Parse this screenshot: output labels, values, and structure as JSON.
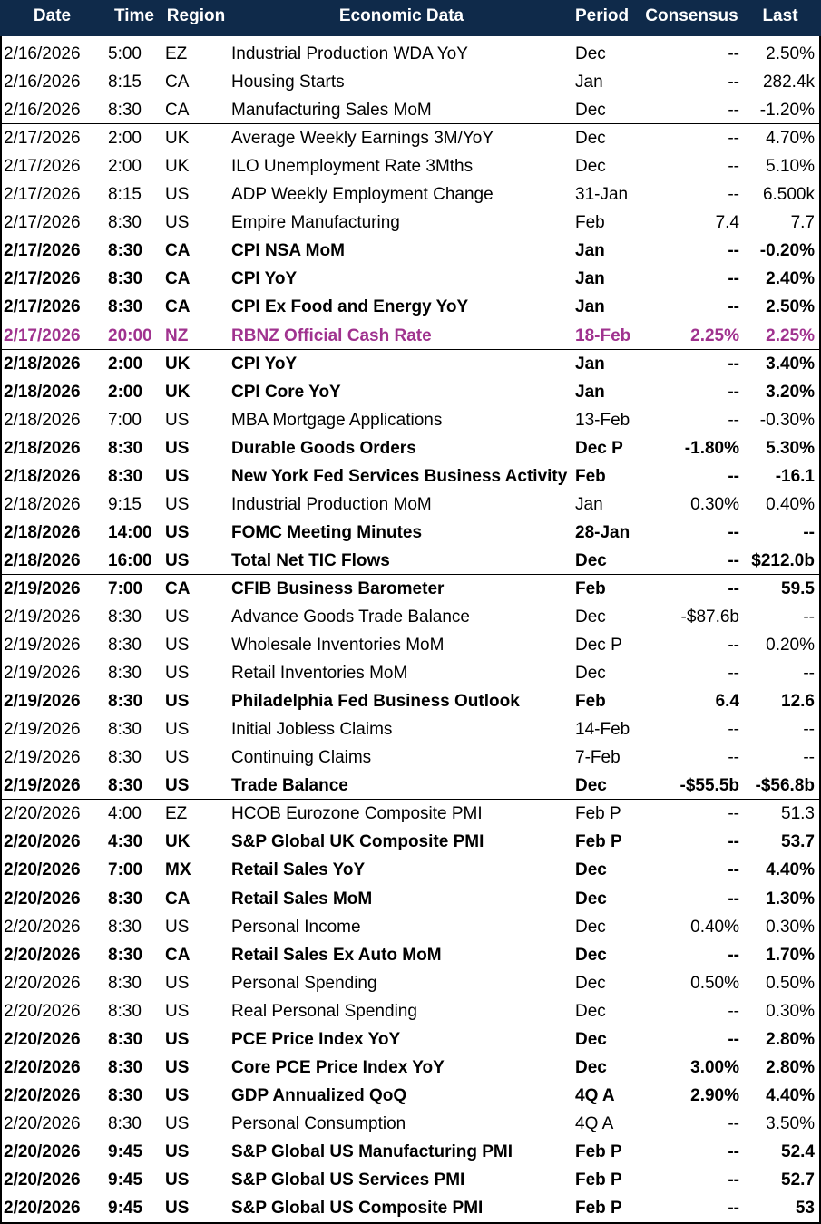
{
  "table": {
    "header": [
      "Date",
      "Time",
      "Region",
      "Economic Data",
      "Period",
      "Consensus",
      "Last"
    ],
    "rows": [
      {
        "cells": [
          "2/16/2026",
          "5:00",
          "EZ",
          "Industrial Production WDA YoY",
          "Dec",
          "--",
          "2.50%"
        ]
      },
      {
        "cells": [
          "2/16/2026",
          "8:15",
          "CA",
          "Housing Starts",
          "Jan",
          "--",
          "282.4k"
        ]
      },
      {
        "cells": [
          "2/16/2026",
          "8:30",
          "CA",
          "Manufacturing Sales MoM",
          "Dec",
          "--",
          "-1.20%"
        ]
      },
      {
        "cells": [
          "2/17/2026",
          "2:00",
          "UK",
          "Average Weekly Earnings 3M/YoY",
          "Dec",
          "--",
          "4.70%"
        ]
      },
      {
        "cells": [
          "2/17/2026",
          "2:00",
          "UK",
          "ILO Unemployment Rate 3Mths",
          "Dec",
          "--",
          "5.10%"
        ]
      },
      {
        "cells": [
          "2/17/2026",
          "8:15",
          "US",
          "ADP Weekly Employment Change",
          "31-Jan",
          "--",
          "6.500k"
        ]
      },
      {
        "cells": [
          "2/17/2026",
          "8:30",
          "US",
          "Empire Manufacturing",
          "Feb",
          "7.4",
          "7.7"
        ]
      },
      {
        "cells": [
          "2/17/2026",
          "8:30",
          "CA",
          "CPI NSA MoM",
          "Jan",
          "--",
          "-0.20%"
        ],
        "bold": true
      },
      {
        "cells": [
          "2/17/2026",
          "8:30",
          "CA",
          "CPI YoY",
          "Jan",
          "--",
          "2.40%"
        ],
        "bold": true
      },
      {
        "cells": [
          "2/17/2026",
          "8:30",
          "CA",
          "CPI Ex Food and Energy YoY",
          "Jan",
          "--",
          "2.50%"
        ],
        "bold": true
      },
      {
        "cells": [
          "2/17/2026",
          "20:00",
          "NZ",
          "RBNZ Official Cash Rate",
          "18-Feb",
          "2.25%",
          "2.25%"
        ],
        "bold": true,
        "color": "#a0338f"
      },
      {
        "cells": [
          "2/18/2026",
          "2:00",
          "UK",
          "CPI YoY",
          "Jan",
          "--",
          "3.40%"
        ],
        "bold": true
      },
      {
        "cells": [
          "2/18/2026",
          "2:00",
          "UK",
          "CPI Core YoY",
          "Jan",
          "--",
          "3.20%"
        ],
        "bold": true
      },
      {
        "cells": [
          "2/18/2026",
          "7:00",
          "US",
          "MBA Mortgage Applications",
          "13-Feb",
          "--",
          "-0.30%"
        ]
      },
      {
        "cells": [
          "2/18/2026",
          "8:30",
          "US",
          "Durable Goods Orders",
          "Dec P",
          "-1.80%",
          "5.30%"
        ],
        "bold": true
      },
      {
        "cells": [
          "2/18/2026",
          "8:30",
          "US",
          "New York Fed Services Business Activity",
          "Feb",
          "--",
          "-16.1"
        ],
        "bold": true
      },
      {
        "cells": [
          "2/18/2026",
          "9:15",
          "US",
          "Industrial Production MoM",
          "Jan",
          "0.30%",
          "0.40%"
        ]
      },
      {
        "cells": [
          "2/18/2026",
          "14:00",
          "US",
          "FOMC Meeting Minutes",
          "28-Jan",
          "--",
          "--"
        ],
        "bold": true
      },
      {
        "cells": [
          "2/18/2026",
          "16:00",
          "US",
          "Total Net TIC Flows",
          "Dec",
          "--",
          "$212.0b"
        ],
        "bold": true
      },
      {
        "cells": [
          "2/19/2026",
          "7:00",
          "CA",
          "CFIB Business Barometer",
          "Feb",
          "--",
          "59.5"
        ],
        "bold": true
      },
      {
        "cells": [
          "2/19/2026",
          "8:30",
          "US",
          "Advance Goods Trade Balance",
          "Dec",
          "-$87.6b",
          "--"
        ]
      },
      {
        "cells": [
          "2/19/2026",
          "8:30",
          "US",
          "Wholesale Inventories MoM",
          "Dec P",
          "--",
          "0.20%"
        ]
      },
      {
        "cells": [
          "2/19/2026",
          "8:30",
          "US",
          "Retail Inventories MoM",
          "Dec",
          "--",
          "--"
        ]
      },
      {
        "cells": [
          "2/19/2026",
          "8:30",
          "US",
          "Philadelphia Fed Business Outlook",
          "Feb",
          "6.4",
          "12.6"
        ],
        "bold": true
      },
      {
        "cells": [
          "2/19/2026",
          "8:30",
          "US",
          "Initial Jobless Claims",
          "14-Feb",
          "--",
          "--"
        ]
      },
      {
        "cells": [
          "2/19/2026",
          "8:30",
          "US",
          "Continuing Claims",
          "7-Feb",
          "--",
          "--"
        ]
      },
      {
        "cells": [
          "2/19/2026",
          "8:30",
          "US",
          "Trade Balance",
          "Dec",
          "-$55.5b",
          "-$56.8b"
        ],
        "bold": true
      },
      {
        "cells": [
          "2/20/2026",
          "4:00",
          "EZ",
          "HCOB Eurozone Composite PMI",
          "Feb P",
          "--",
          "51.3"
        ]
      },
      {
        "cells": [
          "2/20/2026",
          "4:30",
          "UK",
          "S&P Global UK Composite PMI",
          "Feb P",
          "--",
          "53.7"
        ],
        "bold": true
      },
      {
        "cells": [
          "2/20/2026",
          "7:00",
          "MX",
          "Retail Sales YoY",
          "Dec",
          "--",
          "4.40%"
        ],
        "bold": true
      },
      {
        "cells": [
          "2/20/2026",
          "8:30",
          "CA",
          "Retail Sales MoM",
          "Dec",
          "--",
          "1.30%"
        ],
        "bold": true
      },
      {
        "cells": [
          "2/20/2026",
          "8:30",
          "US",
          "Personal Income",
          "Dec",
          "0.40%",
          "0.30%"
        ]
      },
      {
        "cells": [
          "2/20/2026",
          "8:30",
          "CA",
          "Retail Sales Ex Auto MoM",
          "Dec",
          "--",
          "1.70%"
        ],
        "bold": true
      },
      {
        "cells": [
          "2/20/2026",
          "8:30",
          "US",
          "Personal Spending",
          "Dec",
          "0.50%",
          "0.50%"
        ]
      },
      {
        "cells": [
          "2/20/2026",
          "8:30",
          "US",
          "Real Personal Spending",
          "Dec",
          "--",
          "0.30%"
        ]
      },
      {
        "cells": [
          "2/20/2026",
          "8:30",
          "US",
          "PCE Price Index YoY",
          "Dec",
          "--",
          "2.80%"
        ],
        "bold": true
      },
      {
        "cells": [
          "2/20/2026",
          "8:30",
          "US",
          "Core PCE Price Index YoY",
          "Dec",
          "3.00%",
          "2.80%"
        ],
        "bold": true
      },
      {
        "cells": [
          "2/20/2026",
          "8:30",
          "US",
          "GDP Annualized QoQ",
          "4Q A",
          "2.90%",
          "4.40%"
        ],
        "bold": true
      },
      {
        "cells": [
          "2/20/2026",
          "8:30",
          "US",
          "Personal Consumption",
          "4Q A",
          "--",
          "3.50%"
        ]
      },
      {
        "cells": [
          "2/20/2026",
          "9:45",
          "US",
          "S&P Global US Manufacturing PMI",
          "Feb P",
          "--",
          "52.4"
        ],
        "bold": true
      },
      {
        "cells": [
          "2/20/2026",
          "9:45",
          "US",
          "S&P Global US Services PMI",
          "Feb P",
          "--",
          "52.7"
        ],
        "bold": true
      },
      {
        "cells": [
          "2/20/2026",
          "9:45",
          "US",
          "S&P Global US Composite PMI",
          "Feb P",
          "--",
          "53"
        ],
        "bold": true
      }
    ]
  }
}
